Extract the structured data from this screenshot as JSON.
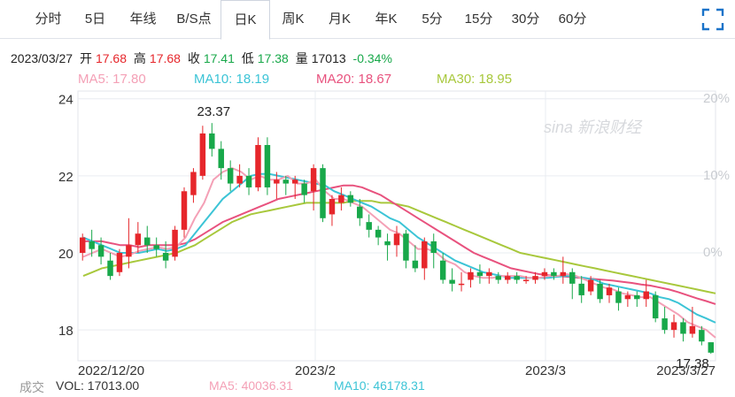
{
  "tabs": [
    {
      "label": "分时",
      "active": false
    },
    {
      "label": "5日",
      "active": false
    },
    {
      "label": "年线",
      "active": false
    },
    {
      "label": "B/S点",
      "active": false
    },
    {
      "label": "日K",
      "active": true
    },
    {
      "label": "周K",
      "active": false
    },
    {
      "label": "月K",
      "active": false
    },
    {
      "label": "年K",
      "active": false
    },
    {
      "label": "5分",
      "active": false
    },
    {
      "label": "15分",
      "active": false
    },
    {
      "label": "30分",
      "active": false
    },
    {
      "label": "60分",
      "active": false
    }
  ],
  "fullscreen_icon": "fullscreen-icon",
  "info": {
    "date": "2023/03/27",
    "open_label": "开",
    "open": "17.68",
    "high_label": "高",
    "high": "17.68",
    "close_label": "收",
    "close": "17.41",
    "low_label": "低",
    "low": "17.38",
    "vol_label": "量",
    "vol": "17013",
    "change": "-0.34%"
  },
  "ma_legend": [
    {
      "label": "MA5: 17.80",
      "color": "#f4a0b6"
    },
    {
      "label": "MA10: 18.19",
      "color": "#3cc4d6"
    },
    {
      "label": "MA20: 18.67",
      "color": "#e8527e"
    },
    {
      "label": "MA30: 18.95",
      "color": "#a8c83c"
    }
  ],
  "watermark": "sina 新浪财经",
  "bottom": {
    "title": "成交",
    "vol": "VOL: 17013.00",
    "ma5": "MA5: 40036.31",
    "ma10": "MA10: 46178.31"
  },
  "colors": {
    "up": "#e6262b",
    "down": "#18a84a",
    "grid": "#e9ecf1"
  },
  "chart_data": {
    "type": "candlestick",
    "y_left_ticks": [
      "24",
      "22",
      "20",
      "18"
    ],
    "y_right_ticks": [
      "20%",
      "10%",
      "0%"
    ],
    "x_labels": [
      "2022/12/20",
      "2023/2",
      "2023/3",
      "2023/3/27"
    ],
    "ylim": [
      17.2,
      24.2
    ],
    "max_label": "23.37",
    "min_label": "17.38",
    "candles": [
      [
        20.0,
        20.4,
        20.5,
        19.8
      ],
      [
        20.3,
        20.1,
        20.6,
        19.9
      ],
      [
        20.2,
        19.9,
        20.4,
        19.7
      ],
      [
        19.8,
        19.4,
        20.0,
        19.3
      ],
      [
        19.5,
        20.0,
        20.1,
        19.4
      ],
      [
        19.9,
        20.2,
        20.9,
        19.6
      ],
      [
        20.2,
        20.5,
        20.8,
        20.0
      ],
      [
        20.4,
        20.2,
        20.7,
        20.0
      ],
      [
        20.2,
        20.1,
        20.4,
        19.9
      ],
      [
        20.0,
        19.8,
        20.3,
        19.6
      ],
      [
        19.9,
        20.6,
        20.7,
        19.8
      ],
      [
        20.6,
        21.6,
        21.7,
        20.4
      ],
      [
        21.5,
        22.1,
        22.2,
        21.3
      ],
      [
        22.0,
        23.1,
        23.3,
        21.9
      ],
      [
        23.1,
        22.7,
        23.37,
        22.5
      ],
      [
        22.7,
        22.2,
        22.9,
        21.9
      ],
      [
        22.2,
        21.8,
        22.4,
        21.6
      ],
      [
        21.8,
        22.0,
        22.3,
        21.7
      ],
      [
        22.0,
        21.7,
        22.2,
        21.5
      ],
      [
        21.7,
        22.8,
        23.0,
        21.6
      ],
      [
        22.8,
        21.7,
        23.0,
        21.5
      ],
      [
        21.8,
        21.9,
        22.1,
        21.4
      ],
      [
        21.9,
        21.8,
        22.0,
        21.5
      ],
      [
        21.8,
        21.9,
        22.0,
        21.4
      ],
      [
        21.8,
        21.5,
        21.9,
        21.3
      ],
      [
        21.6,
        22.2,
        22.3,
        21.1
      ],
      [
        22.2,
        20.9,
        22.3,
        20.8
      ],
      [
        21.0,
        21.4,
        21.5,
        20.7
      ],
      [
        21.3,
        21.5,
        21.7,
        21.1
      ],
      [
        21.5,
        21.3,
        21.6,
        21.2
      ],
      [
        21.2,
        20.9,
        21.4,
        20.7
      ],
      [
        20.8,
        20.6,
        21.0,
        20.4
      ],
      [
        20.6,
        20.4,
        20.7,
        20.2
      ],
      [
        20.3,
        20.2,
        20.5,
        19.8
      ],
      [
        20.2,
        20.5,
        20.7,
        19.9
      ],
      [
        20.5,
        19.8,
        20.6,
        19.6
      ],
      [
        19.8,
        19.6,
        20.2,
        19.5
      ],
      [
        19.6,
        20.3,
        20.4,
        19.3
      ],
      [
        20.3,
        20.0,
        20.5,
        19.6
      ],
      [
        19.8,
        19.3,
        20.0,
        19.2
      ],
      [
        19.3,
        19.2,
        19.6,
        19.0
      ],
      [
        19.2,
        19.2,
        19.5,
        19.0
      ],
      [
        19.3,
        19.5,
        19.6,
        19.1
      ],
      [
        19.5,
        19.4,
        19.7,
        19.2
      ],
      [
        19.4,
        19.5,
        19.6,
        19.2
      ],
      [
        19.4,
        19.3,
        19.5,
        19.2
      ],
      [
        19.3,
        19.4,
        19.5,
        19.2
      ],
      [
        19.4,
        19.3,
        19.5,
        19.2
      ],
      [
        19.3,
        19.3,
        19.4,
        19.2
      ],
      [
        19.3,
        19.4,
        19.5,
        19.2
      ],
      [
        19.4,
        19.5,
        19.6,
        19.3
      ],
      [
        19.5,
        19.4,
        19.6,
        19.3
      ],
      [
        19.4,
        19.5,
        19.9,
        19.2
      ],
      [
        19.5,
        19.2,
        19.6,
        18.8
      ],
      [
        19.2,
        18.9,
        19.4,
        18.7
      ],
      [
        19.0,
        19.3,
        19.4,
        18.9
      ],
      [
        19.2,
        18.8,
        19.3,
        18.7
      ],
      [
        18.9,
        19.1,
        19.2,
        18.7
      ],
      [
        19.0,
        18.7,
        19.1,
        18.5
      ],
      [
        18.8,
        18.9,
        19.0,
        18.6
      ],
      [
        18.9,
        18.8,
        19.0,
        18.6
      ],
      [
        18.8,
        19.0,
        19.3,
        18.6
      ],
      [
        18.9,
        18.3,
        19.0,
        18.2
      ],
      [
        18.3,
        18.0,
        18.6,
        17.9
      ],
      [
        18.0,
        18.2,
        18.4,
        17.8
      ],
      [
        18.2,
        17.9,
        18.3,
        17.7
      ],
      [
        17.9,
        18.1,
        18.6,
        17.8
      ],
      [
        18.0,
        17.7,
        18.1,
        17.6
      ],
      [
        17.68,
        17.41,
        17.68,
        17.38
      ]
    ],
    "ma5": [
      19.9,
      20.0,
      20.1,
      20.0,
      19.9,
      19.95,
      20.05,
      20.1,
      20.15,
      20.1,
      20.15,
      20.4,
      20.9,
      21.3,
      21.9,
      22.1,
      22.2,
      22.1,
      21.9,
      22.0,
      21.9,
      21.9,
      22.0,
      21.8,
      21.8,
      21.9,
      21.6,
      21.4,
      21.4,
      21.3,
      21.2,
      21.0,
      20.8,
      20.6,
      20.5,
      20.3,
      20.1,
      20.1,
      20.0,
      19.8,
      19.7,
      19.5,
      19.4,
      19.35,
      19.35,
      19.4,
      19.4,
      19.4,
      19.35,
      19.35,
      19.4,
      19.4,
      19.45,
      19.4,
      19.3,
      19.2,
      19.1,
      19.05,
      18.95,
      18.9,
      18.85,
      18.85,
      18.7,
      18.55,
      18.4,
      18.2,
      18.1,
      18.0,
      17.8
    ],
    "ma10": [
      20.4,
      20.3,
      20.2,
      20.1,
      20.0,
      20.0,
      20.0,
      20.05,
      20.1,
      20.05,
      20.1,
      20.2,
      20.5,
      20.8,
      21.1,
      21.4,
      21.6,
      21.8,
      22.0,
      22.05,
      22.05,
      22.0,
      21.95,
      21.9,
      21.85,
      21.8,
      21.75,
      21.6,
      21.5,
      21.4,
      21.3,
      21.2,
      21.05,
      20.9,
      20.8,
      20.6,
      20.4,
      20.25,
      20.1,
      19.95,
      19.8,
      19.7,
      19.6,
      19.5,
      19.45,
      19.4,
      19.35,
      19.35,
      19.35,
      19.35,
      19.35,
      19.38,
      19.4,
      19.38,
      19.35,
      19.3,
      19.2,
      19.15,
      19.1,
      19.05,
      19.0,
      18.95,
      18.85,
      18.8,
      18.7,
      18.55,
      18.4,
      18.3,
      18.19
    ],
    "ma20": [
      20.3,
      20.3,
      20.3,
      20.25,
      20.2,
      20.2,
      20.15,
      20.2,
      20.2,
      20.2,
      20.2,
      20.25,
      20.35,
      20.5,
      20.65,
      20.8,
      20.9,
      21.0,
      21.1,
      21.2,
      21.3,
      21.4,
      21.45,
      21.5,
      21.55,
      21.6,
      21.65,
      21.7,
      21.75,
      21.75,
      21.7,
      21.6,
      21.5,
      21.35,
      21.2,
      21.05,
      20.9,
      20.75,
      20.6,
      20.45,
      20.3,
      20.15,
      20.0,
      19.9,
      19.8,
      19.7,
      19.6,
      19.55,
      19.5,
      19.45,
      19.42,
      19.4,
      19.38,
      19.36,
      19.34,
      19.32,
      19.3,
      19.28,
      19.25,
      19.22,
      19.18,
      19.15,
      19.1,
      19.05,
      18.98,
      18.9,
      18.82,
      18.75,
      18.67
    ],
    "ma30": [
      19.4,
      19.5,
      19.6,
      19.65,
      19.7,
      19.75,
      19.8,
      19.85,
      19.9,
      19.95,
      20.0,
      20.1,
      20.2,
      20.35,
      20.5,
      20.65,
      20.8,
      20.9,
      21.0,
      21.05,
      21.1,
      21.15,
      21.2,
      21.25,
      21.3,
      21.3,
      21.3,
      21.3,
      21.3,
      21.35,
      21.35,
      21.35,
      21.3,
      21.3,
      21.25,
      21.2,
      21.1,
      21.0,
      20.9,
      20.8,
      20.7,
      20.6,
      20.5,
      20.4,
      20.3,
      20.2,
      20.1,
      20.0,
      19.95,
      19.9,
      19.85,
      19.8,
      19.75,
      19.7,
      19.65,
      19.6,
      19.55,
      19.5,
      19.45,
      19.4,
      19.35,
      19.3,
      19.25,
      19.2,
      19.15,
      19.1,
      19.05,
      19.0,
      18.95
    ]
  }
}
